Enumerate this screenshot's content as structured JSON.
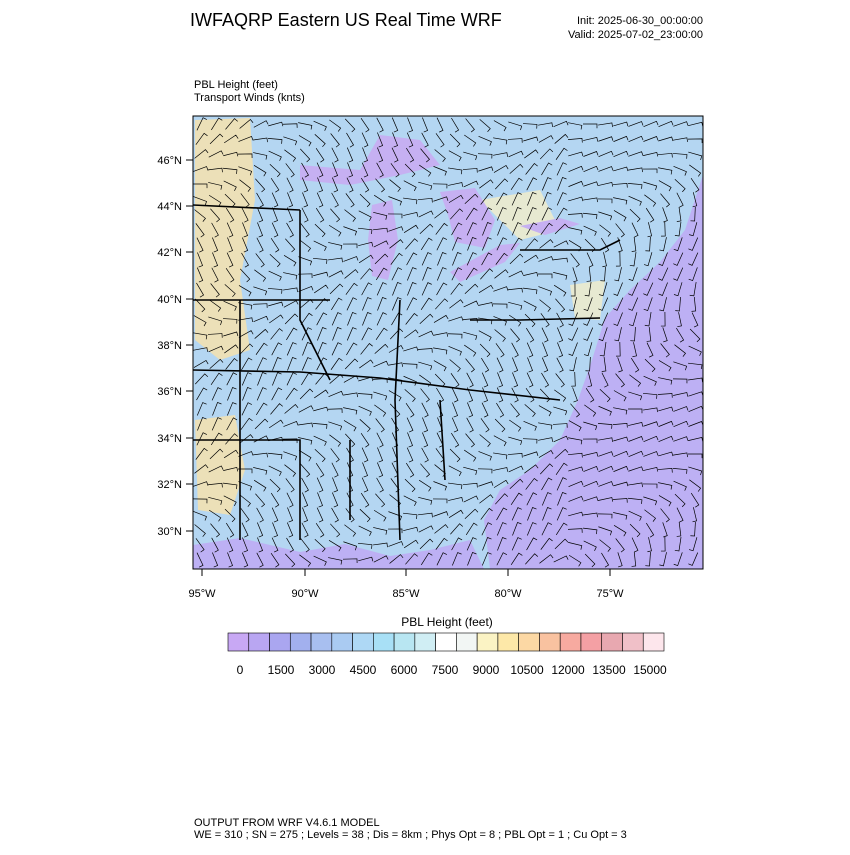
{
  "header": {
    "title": "IWFAQRP Eastern US Real Time WRF",
    "init": "Init: 2025-06-30_00:00:00",
    "valid": "Valid: 2025-07-02_23:00:00"
  },
  "plot": {
    "field": "PBL Height   (feet)",
    "winds": "Transport Winds   (knts)"
  },
  "map": {
    "lat_labels": [
      "46°N",
      "44°N",
      "42°N",
      "40°N",
      "38°N",
      "36°N",
      "34°N",
      "32°N",
      "30°N"
    ],
    "lon_labels": [
      "95°W",
      "90°W",
      "85°W",
      "80°W",
      "75°W"
    ]
  },
  "colorbar": {
    "title": "PBL Height  (feet)",
    "labels": [
      "0",
      "1500",
      "3000",
      "4500",
      "6000",
      "7500",
      "9000",
      "10500",
      "12000",
      "13500",
      "15000"
    ],
    "colors": [
      "#c8a8f4",
      "#b9a6f2",
      "#aaa6f0",
      "#a2b0ee",
      "#a8bff0",
      "#aacbf2",
      "#aed8f5",
      "#a8e0f6",
      "#b8e6f2",
      "#d0eef4",
      "#ffffff",
      "#f2f6f4",
      "#fbf3c4",
      "#fde8a8",
      "#fcd8a4",
      "#f9c2a0",
      "#f7aaa0",
      "#f4a0a4",
      "#e8a8b0",
      "#f0c0c8",
      "#fde6ec"
    ]
  },
  "footer": {
    "line1": "OUTPUT FROM WRF V4.6.1 MODEL",
    "line2": "WE = 310 ; SN = 275 ; Levels = 38 ; Dis = 8km ; Phys Opt = 8 ; PBL Opt = 1 ; Cu Opt = 3"
  }
}
